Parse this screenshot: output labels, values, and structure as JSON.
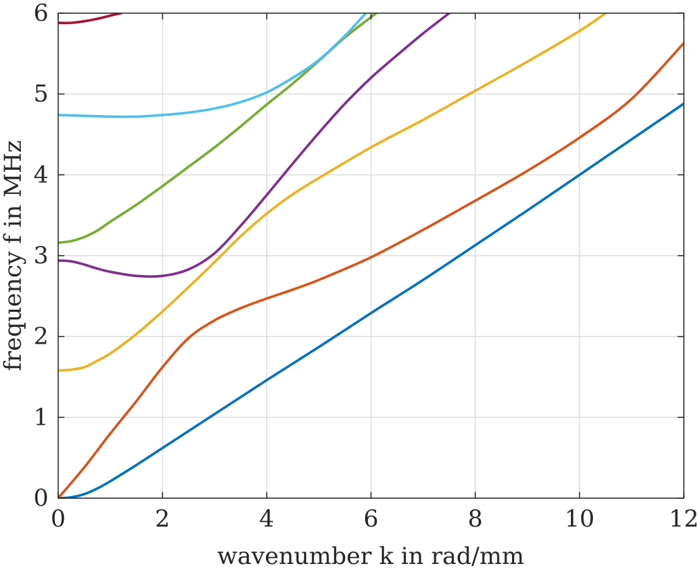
{
  "chart_data": {
    "type": "line",
    "title": "",
    "xlabel": "wavenumber k in rad/mm",
    "ylabel": "frequency f in MHz",
    "xlim": [
      0,
      12
    ],
    "ylim": [
      0,
      6
    ],
    "xticks": [
      "0",
      "2",
      "4",
      "6",
      "8",
      "10",
      "12"
    ],
    "yticks": [
      "0",
      "1",
      "2",
      "3",
      "4",
      "5",
      "6"
    ],
    "grid": true,
    "legend": "none",
    "series": [
      {
        "color": "#0072BD",
        "x": [
          0,
          0.25,
          0.5,
          0.75,
          1,
          1.5,
          2,
          2.5,
          3,
          4,
          5,
          6,
          7,
          8,
          9,
          10,
          11,
          12
        ],
        "y": [
          0,
          0.01,
          0.05,
          0.12,
          0.21,
          0.41,
          0.62,
          0.83,
          1.04,
          1.46,
          1.87,
          2.29,
          2.7,
          3.13,
          3.56,
          4.0,
          4.44,
          4.88
        ]
      },
      {
        "color": "#D95319",
        "x": [
          0,
          0.5,
          1,
          1.5,
          2,
          2.5,
          3,
          3.5,
          4,
          4.5,
          5,
          6,
          7,
          8,
          9,
          10,
          11,
          12
        ],
        "y": [
          0,
          0.38,
          0.8,
          1.2,
          1.62,
          1.98,
          2.2,
          2.35,
          2.47,
          2.58,
          2.7,
          2.98,
          3.32,
          3.68,
          4.05,
          4.46,
          4.94,
          5.63
        ]
      },
      {
        "color": "#EDB120",
        "x": [
          0,
          0.25,
          0.5,
          0.75,
          1,
          1.5,
          2,
          2.5,
          3,
          3.5,
          4,
          4.5,
          5,
          6,
          7,
          8,
          9,
          10,
          10.5
        ],
        "y": [
          1.58,
          1.59,
          1.62,
          1.7,
          1.79,
          2.03,
          2.31,
          2.61,
          2.92,
          3.24,
          3.52,
          3.76,
          3.96,
          4.34,
          4.68,
          5.04,
          5.4,
          5.78,
          6.0
        ]
      },
      {
        "color": "#7E2F8E",
        "x": [
          0,
          0.25,
          0.5,
          0.75,
          1,
          1.5,
          2,
          2.5,
          3,
          3.5,
          4,
          4.5,
          5,
          5.5,
          6,
          6.5,
          7,
          7.5
        ],
        "y": [
          2.94,
          2.93,
          2.89,
          2.84,
          2.8,
          2.75,
          2.75,
          2.83,
          3.03,
          3.37,
          3.75,
          4.14,
          4.52,
          4.88,
          5.2,
          5.48,
          5.75,
          6.0
        ]
      },
      {
        "color": "#77AC30",
        "x": [
          0,
          0.25,
          0.5,
          0.75,
          1,
          1.5,
          2,
          2.5,
          3,
          3.5,
          4,
          4.5,
          5,
          5.5,
          6,
          6.1
        ],
        "y": [
          3.16,
          3.18,
          3.23,
          3.31,
          3.42,
          3.63,
          3.86,
          4.1,
          4.34,
          4.6,
          4.87,
          5.13,
          5.41,
          5.7,
          5.95,
          6.0
        ]
      },
      {
        "color": "#4DBEEE",
        "x": [
          0,
          0.5,
          1,
          1.5,
          2,
          2.5,
          3,
          3.5,
          4,
          4.5,
          5,
          5.5,
          5.9
        ],
        "y": [
          4.74,
          4.73,
          4.72,
          4.72,
          4.74,
          4.77,
          4.82,
          4.9,
          5.02,
          5.2,
          5.42,
          5.72,
          6.0
        ]
      },
      {
        "color": "#A2142F",
        "x": [
          0,
          0.25,
          0.5,
          0.75,
          1,
          1.2
        ],
        "y": [
          5.88,
          5.88,
          5.9,
          5.93,
          5.97,
          6.0
        ]
      }
    ]
  }
}
